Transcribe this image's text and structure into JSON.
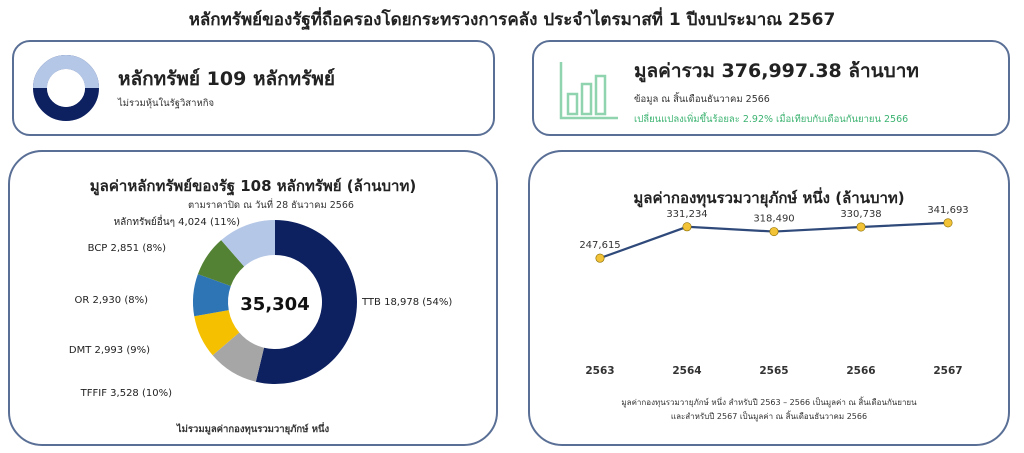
{
  "page": {
    "title": "หลักทรัพย์ของรัฐที่ถือครองโดยกระทรวงการคลัง ประจำไตรมาสที่ 1 ปีงบประมาณ 2567"
  },
  "card_count": {
    "headline": "หลักทรัพย์ 109 หลักทรัพย์",
    "note": "ไม่รวมหุ้นในรัฐวิสาหกิจ",
    "icon": "ring-icon"
  },
  "card_total": {
    "headline": "มูลค่ารวม 376,997.38 ล้านบาท",
    "asof": "ข้อมูล ณ สิ้นเดือนธันวาคม 2566",
    "change": "เปลี่ยนแปลงเพิ่มขึ้นร้อยละ 2.92% เมื่อเทียบกับเดือนกันยายน 2566",
    "icon": "bar-chart-icon",
    "accent": "#3cb371"
  },
  "donut": {
    "title": "มูลค่าหลักทรัพย์ของรัฐ 108 หลักทรัพย์ (ล้านบาท)",
    "subtitle": "ตามราคาปิด ณ วันที่ 28 ธันวาคม 2566",
    "center_value": "35,304",
    "footnote": "ไม่รวมมูลค่ากองทุนรวมวายุภักษ์ หนึ่ง"
  },
  "line": {
    "title": "มูลค่ากองทุนรวมวายุภักษ์ หนึ่ง (ล้านบาท)",
    "note_line1": "มูลค่ากองทุนรวมวายุภักษ์ หนึ่ง สำหรับปี 2563 – 2566 เป็นมูลค่า ณ สิ้นเดือนกันยายน",
    "note_line2": "และสำหรับปี 2567 เป็นมูลค่า ณ สิ้นเดือนธันวาคม 2566"
  },
  "chart_data": [
    {
      "type": "pie",
      "title": "มูลค่าหลักทรัพย์ของรัฐ 108 หลักทรัพย์ (ล้านบาท)",
      "slices": [
        {
          "label": "TTB",
          "value": 18978,
          "value_text": "18,978",
          "pct_text": "(54%)",
          "color": "#0d2060"
        },
        {
          "label": "TFFIF",
          "value": 3528,
          "value_text": "3,528",
          "pct_text": "(10%)",
          "color": "#a6a6a6"
        },
        {
          "label": "DMT",
          "value": 2993,
          "value_text": "2,993",
          "pct_text": "(9%)",
          "color": "#f5c000"
        },
        {
          "label": "OR",
          "value": 2930,
          "value_text": "2,930",
          "pct_text": "(8%)",
          "color": "#2e75b6"
        },
        {
          "label": "BCP",
          "value": 2851,
          "value_text": "2,851",
          "pct_text": "(8%)",
          "color": "#548235"
        },
        {
          "label": "หลักทรัพย์อื่นๆ",
          "value": 4024,
          "value_text": "4,024",
          "pct_text": "(11%)",
          "color": "#b4c7e7"
        }
      ],
      "center_label": "35,304"
    },
    {
      "type": "line",
      "title": "มูลค่ากองทุนรวมวายุภักษ์ หนึ่ง (ล้านบาท)",
      "x": [
        "2563",
        "2564",
        "2565",
        "2566",
        "2567"
      ],
      "series": [
        {
          "values": [
            247615,
            331234,
            318490,
            330738,
            341693
          ],
          "labels": [
            "247,615",
            "331,234",
            "318,490",
            "330,738",
            "341,693"
          ],
          "color": "#2f4a7a",
          "marker_color": "#f2c237"
        }
      ],
      "grid": false
    }
  ]
}
